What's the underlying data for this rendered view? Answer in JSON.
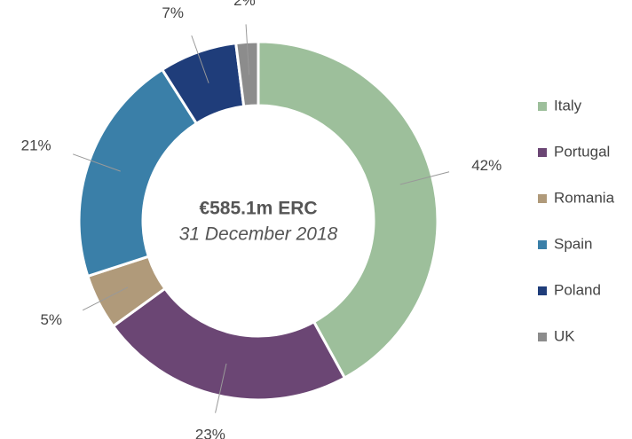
{
  "chart_data": {
    "type": "donut",
    "center_title": "€585.1m ERC",
    "center_subtitle": "31 December 2018",
    "categories": [
      "Italy",
      "Portugal",
      "Romania",
      "Spain",
      "Poland",
      "UK"
    ],
    "values": [
      42,
      23,
      5,
      21,
      7,
      2
    ],
    "value_labels": [
      "42%",
      "23%",
      "5%",
      "21%",
      "7%",
      "2%"
    ],
    "colors": [
      "#9dbf9b",
      "#6b4674",
      "#b09a7a",
      "#3a7fa8",
      "#1f3d7a",
      "#8c8c8c"
    ],
    "legend": "right"
  }
}
